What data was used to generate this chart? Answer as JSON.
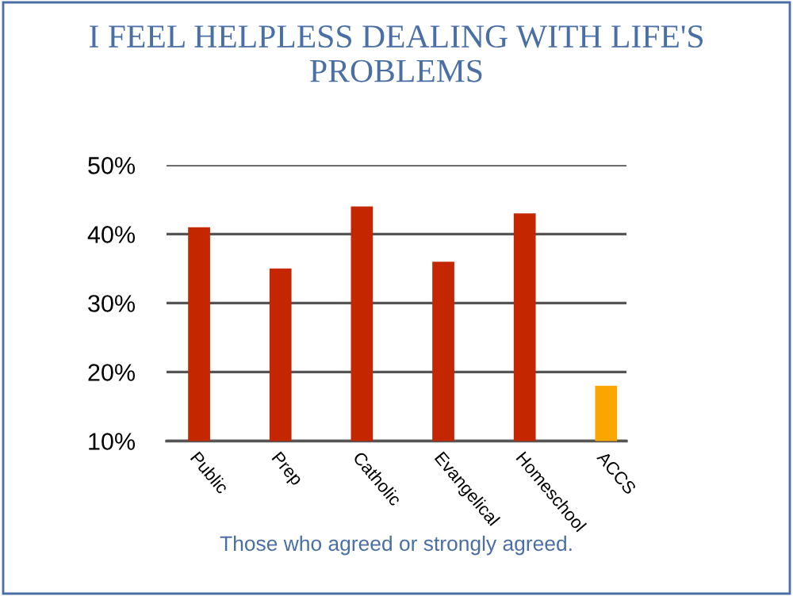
{
  "chart_data": {
    "type": "bar",
    "title": "I FEEL HELPLESS DEALING WITH LIFE'S PROBLEMS",
    "categories": [
      "Public",
      "Prep",
      "Catholic",
      "Evangelical",
      "Homeschool",
      "ACCS"
    ],
    "values": [
      41,
      35,
      44,
      36,
      43,
      18
    ],
    "colors": [
      "#c42600",
      "#c42600",
      "#c42600",
      "#c42600",
      "#c42600",
      "#fba500"
    ],
    "ylim": [
      10,
      50
    ],
    "yticks": [
      {
        "value": 10,
        "label": "10%"
      },
      {
        "value": 20,
        "label": "20%"
      },
      {
        "value": 30,
        "label": "30%"
      },
      {
        "value": 40,
        "label": "40%"
      },
      {
        "value": 50,
        "label": "50%"
      }
    ],
    "grid": "y",
    "annotations": [
      "Those who agreed or strongly agreed."
    ]
  }
}
